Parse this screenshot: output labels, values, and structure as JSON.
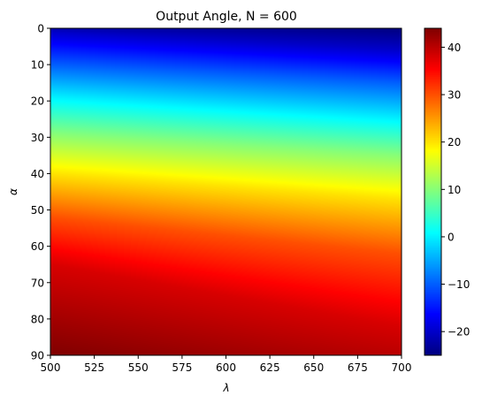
{
  "chart_data": {
    "type": "heatmap",
    "title": "Output Angle, N = 600",
    "xlabel": "λ",
    "ylabel": "α",
    "x_range": [
      500,
      700
    ],
    "y_range": [
      0,
      90
    ],
    "y_inverted": true,
    "x_ticks": [
      500,
      525,
      550,
      575,
      600,
      625,
      650,
      675,
      700
    ],
    "x_tick_labels": [
      "500",
      "525",
      "550",
      "575",
      "600",
      "625",
      "650",
      "675",
      "700"
    ],
    "y_ticks": [
      0,
      10,
      20,
      30,
      40,
      50,
      60,
      70,
      80,
      90
    ],
    "y_tick_labels": [
      "0",
      "10",
      "20",
      "30",
      "40",
      "50",
      "60",
      "70",
      "80",
      "90"
    ],
    "colormap": "jet",
    "colorbar": {
      "range": [
        -25,
        44
      ],
      "ticks": [
        -20,
        -10,
        0,
        10,
        20,
        30,
        40
      ],
      "tick_labels": [
        "−20",
        "−10",
        "0",
        "10",
        "20",
        "30",
        "40"
      ]
    },
    "iso_samples": [
      {
        "value": -20,
        "alpha_at_500": 1,
        "alpha_at_700": 6
      },
      {
        "value": -10,
        "alpha_at_500": 10,
        "alpha_at_700": 15
      },
      {
        "value": 0,
        "alpha_at_500": 19,
        "alpha_at_700": 25
      },
      {
        "value": 10,
        "alpha_at_500": 29,
        "alpha_at_700": 35
      },
      {
        "value": 20,
        "alpha_at_500": 40,
        "alpha_at_700": 47
      },
      {
        "value": 30,
        "alpha_at_500": 52,
        "alpha_at_700": 62
      },
      {
        "value": 38,
        "alpha_at_500": 65,
        "alpha_at_700": 82
      }
    ],
    "corner_values": {
      "top_left": -22,
      "top_right": -25,
      "bottom_left": 44,
      "bottom_right": 40
    }
  }
}
